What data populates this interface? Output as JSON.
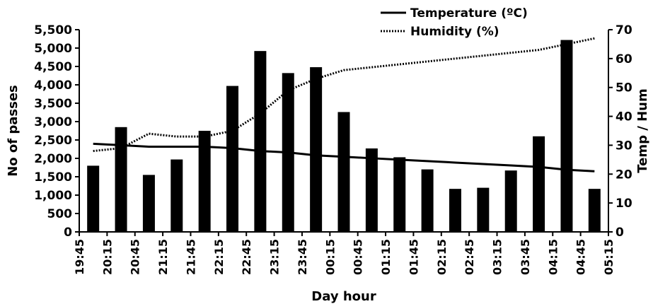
{
  "chart_data": {
    "type": "bar",
    "xlabel": "Day hour",
    "ylabel": "No of passes",
    "y2label": "Temp / Hum",
    "ylim": [
      0,
      5500
    ],
    "y2lim": [
      0,
      70
    ],
    "y_ticks": [
      "0",
      "500",
      "1,000",
      "1,500",
      "2,000",
      "2,500",
      "3,000",
      "3,500",
      "4,000",
      "4,500",
      "5,000",
      "5,500"
    ],
    "y2_ticks": [
      "0",
      "10",
      "20",
      "30",
      "40",
      "50",
      "60",
      "70"
    ],
    "x_ticks": [
      "19:45",
      "20:15",
      "20:45",
      "21:15",
      "21:45",
      "22:15",
      "22:45",
      "23:15",
      "23:45",
      "00:15",
      "00:45",
      "01:15",
      "01:45",
      "02:15",
      "02:45",
      "03:15",
      "03:45",
      "04:15",
      "04:45",
      "05:15"
    ],
    "legend_position": "top-right",
    "grid": false,
    "series": [
      {
        "name": "No of passes",
        "type": "bar",
        "axis": "left",
        "values": [
          1800,
          2850,
          1550,
          1970,
          2750,
          3970,
          4920,
          4320,
          4480,
          3260,
          2270,
          2030,
          1700,
          1170,
          1200,
          1670,
          2600,
          5220,
          1170
        ]
      },
      {
        "name": "Temperature (ºC)",
        "type": "line",
        "style": "solid",
        "axis": "right",
        "values": [
          30.5,
          30.0,
          29.5,
          29.5,
          29.5,
          29.0,
          28.0,
          27.5,
          26.5,
          26.0,
          25.5,
          25.0,
          24.5,
          24.0,
          23.5,
          23.0,
          22.5,
          21.5,
          21.0
        ]
      },
      {
        "name": "Humidity (%)",
        "type": "line",
        "style": "dotted",
        "axis": "right",
        "values": [
          28,
          29,
          34,
          33,
          33,
          35,
          41,
          49,
          53,
          56,
          57,
          58,
          59,
          60,
          61,
          62,
          63,
          65,
          67
        ]
      }
    ],
    "colors": {
      "bars": "#000000",
      "lines": "#000000",
      "background": "#ffffff"
    }
  }
}
